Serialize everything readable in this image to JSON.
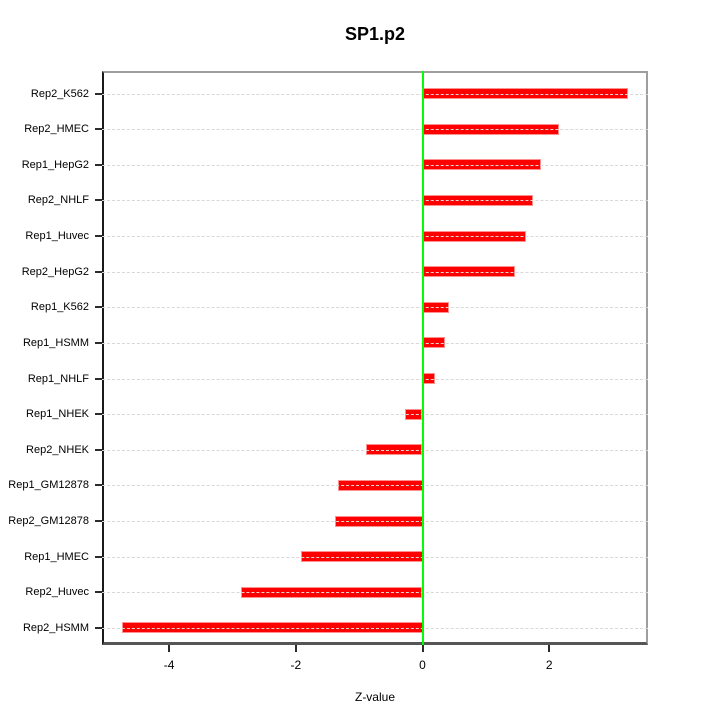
{
  "chart_data": {
    "type": "bar",
    "orientation": "horizontal",
    "title": "SP1.p2",
    "xlabel": "Z-value",
    "ylabel": "",
    "categories": [
      "Rep2_K562",
      "Rep2_HMEC",
      "Rep1_HepG2",
      "Rep2_NHLF",
      "Rep1_Huvec",
      "Rep2_HepG2",
      "Rep1_K562",
      "Rep1_HSMM",
      "Rep1_NHLF",
      "Rep1_NHEK",
      "Rep2_NHEK",
      "Rep1_GM12878",
      "Rep2_GM12878",
      "Rep1_HMEC",
      "Rep2_Huvec",
      "Rep2_HSMM"
    ],
    "values": [
      3.24,
      2.16,
      1.87,
      1.75,
      1.64,
      1.46,
      0.42,
      0.35,
      0.2,
      -0.27,
      -0.89,
      -1.34,
      -1.38,
      -1.92,
      -2.87,
      -4.74
    ],
    "xlim": [
      -5.06,
      3.56
    ],
    "xticks": [
      -4,
      -2,
      0,
      2
    ],
    "xtick_labels": [
      "-4",
      "-2",
      "0",
      "2"
    ],
    "grid": true,
    "legend": null,
    "colors": {
      "bar_fill": "#ff0000",
      "bar_border": "#ff9090",
      "zero_line": "#00ff00",
      "gridline": "#d8d8d8",
      "tick": "#2b2b2b",
      "text": "#000000"
    }
  }
}
